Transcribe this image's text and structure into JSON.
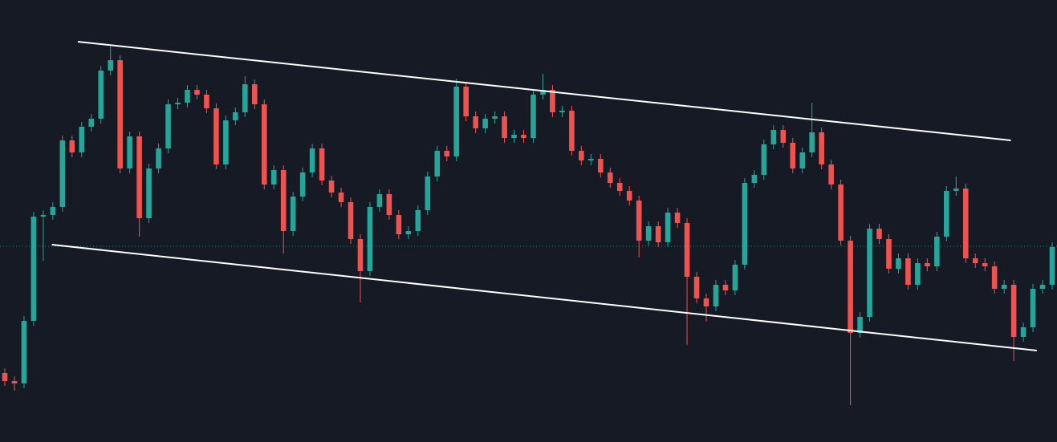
{
  "chart_data": {
    "type": "candlestick",
    "xlim": [
      0,
      110
    ],
    "ylim": [
      0,
      551
    ],
    "up_color": "#26a69a",
    "down_color": "#ef5350",
    "open": [
      86,
      76,
      73,
      151,
      281,
      283,
      293,
      376,
      361,
      393,
      403,
      463,
      476,
      341,
      381,
      279,
      341,
      366,
      421,
      423,
      439,
      433,
      416,
      346,
      401,
      411,
      446,
      421,
      321,
      339,
      263,
      306,
      336,
      366,
      326,
      311,
      299,
      253,
      213,
      293,
      309,
      283,
      259,
      263,
      289,
      331,
      363,
      356,
      443,
      406,
      391,
      403,
      406,
      379,
      383,
      379,
      433,
      439,
      411,
      413,
      363,
      351,
      353,
      336,
      323,
      313,
      301,
      251,
      269,
      249,
      286,
      273,
      206,
      179,
      169,
      196,
      189,
      221,
      323,
      333,
      371,
      389,
      373,
      341,
      361,
      386,
      346,
      321,
      251,
      136,
      156,
      266,
      253,
      216,
      229,
      196,
      223,
      219,
      256,
      313,
      316,
      229,
      223,
      219,
      191,
      196,
      131,
      143,
      191,
      196
    ],
    "high": [
      92,
      82,
      157,
      287,
      289,
      299,
      382,
      382,
      399,
      409,
      469,
      493,
      482,
      387,
      387,
      347,
      372,
      427,
      429,
      445,
      445,
      439,
      422,
      407,
      417,
      456,
      452,
      427,
      345,
      345,
      312,
      342,
      372,
      372,
      332,
      317,
      305,
      259,
      299,
      315,
      315,
      289,
      269,
      295,
      337,
      369,
      369,
      453,
      449,
      412,
      409,
      412,
      412,
      389,
      389,
      439,
      459,
      445,
      419,
      419,
      369,
      359,
      359,
      342,
      329,
      319,
      307,
      275,
      275,
      292,
      292,
      279,
      212,
      185,
      202,
      202,
      227,
      329,
      339,
      377,
      395,
      395,
      379,
      367,
      423,
      392,
      352,
      327,
      257,
      162,
      272,
      272,
      259,
      235,
      235,
      229,
      229,
      262,
      319,
      331,
      322,
      235,
      229,
      225,
      202,
      202,
      149,
      197,
      202,
      249
    ],
    "low": [
      70,
      64,
      67,
      145,
      226,
      277,
      287,
      355,
      355,
      387,
      397,
      457,
      335,
      335,
      256,
      273,
      335,
      360,
      415,
      417,
      427,
      410,
      340,
      340,
      395,
      405,
      415,
      315,
      315,
      235,
      257,
      300,
      330,
      320,
      305,
      293,
      247,
      174,
      207,
      287,
      277,
      253,
      253,
      257,
      283,
      325,
      350,
      350,
      400,
      385,
      385,
      397,
      373,
      373,
      373,
      373,
      427,
      405,
      405,
      357,
      345,
      345,
      330,
      317,
      307,
      295,
      230,
      245,
      243,
      243,
      267,
      121,
      173,
      150,
      163,
      183,
      183,
      215,
      317,
      327,
      365,
      367,
      335,
      335,
      355,
      340,
      315,
      245,
      46,
      130,
      150,
      247,
      210,
      210,
      190,
      190,
      213,
      213,
      250,
      307,
      223,
      217,
      213,
      185,
      185,
      101,
      125,
      137,
      185,
      190
    ],
    "close": [
      76,
      73,
      151,
      281,
      283,
      293,
      376,
      361,
      393,
      403,
      463,
      476,
      341,
      381,
      279,
      341,
      366,
      421,
      423,
      439,
      433,
      416,
      346,
      401,
      411,
      446,
      421,
      321,
      339,
      263,
      306,
      336,
      366,
      326,
      311,
      299,
      253,
      213,
      293,
      309,
      283,
      259,
      263,
      289,
      331,
      363,
      356,
      443,
      406,
      391,
      403,
      406,
      379,
      383,
      379,
      433,
      439,
      411,
      413,
      363,
      351,
      353,
      336,
      323,
      313,
      301,
      251,
      269,
      249,
      286,
      273,
      206,
      179,
      169,
      196,
      189,
      221,
      323,
      333,
      371,
      389,
      373,
      341,
      361,
      386,
      346,
      321,
      251,
      136,
      156,
      266,
      253,
      216,
      229,
      196,
      223,
      219,
      256,
      313,
      316,
      229,
      223,
      219,
      191,
      196,
      131,
      143,
      191,
      196,
      243
    ],
    "trendlines": [
      {
        "x": [
          8.1,
          105.2
        ],
        "y": [
          499,
          376
        ],
        "color": "#ffffff"
      },
      {
        "x": [
          5.4,
          107.9
        ],
        "y": [
          246,
          114
        ],
        "color": "#ffffff"
      }
    ],
    "price_line": {
      "value": 244,
      "color": "#26a69a"
    }
  }
}
